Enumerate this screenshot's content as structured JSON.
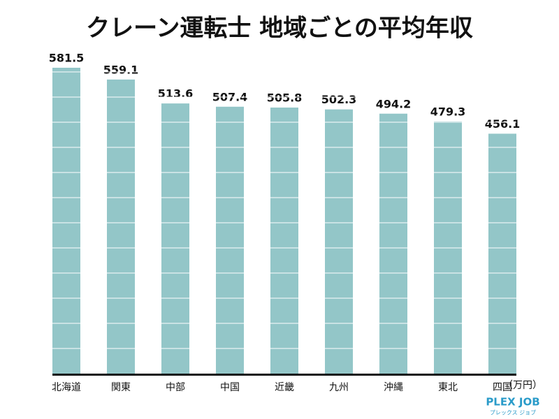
{
  "chart_data": {
    "type": "bar",
    "title": "クレーン運転士 地域ごとの平均年収",
    "categories": [
      "北海道",
      "関東",
      "中部",
      "中国",
      "近畿",
      "九州",
      "沖縄",
      "東北",
      "四国"
    ],
    "values": [
      581.5,
      559.1,
      513.6,
      507.4,
      505.8,
      502.3,
      494.2,
      479.3,
      456.1
    ],
    "color": "#93c6c8",
    "unit_label": "（万円）"
  },
  "logo": {
    "name": "PLEX JOB",
    "subtitle": "プレックス ジョブ"
  }
}
